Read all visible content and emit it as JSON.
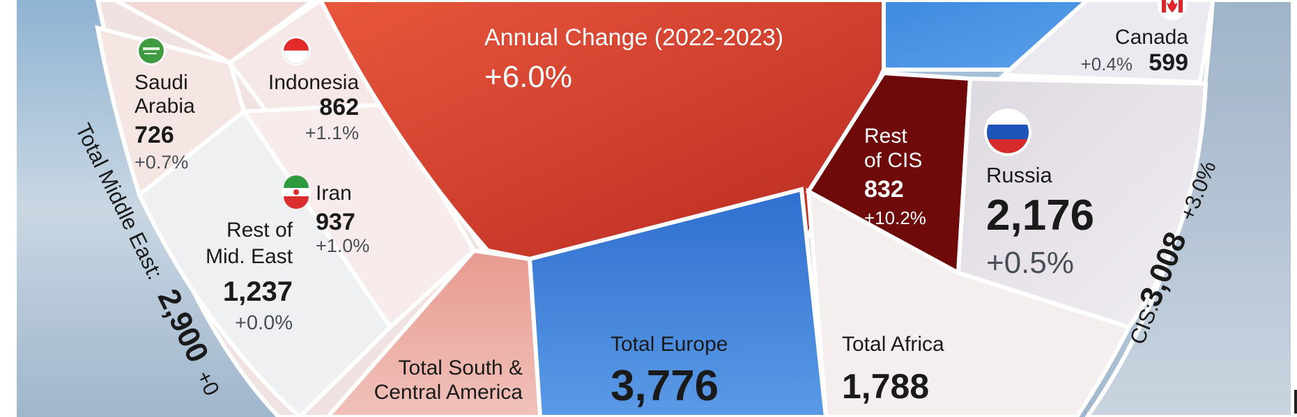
{
  "center": {
    "change_label": "Annual Change (2022-2023)",
    "change_value": "+6.0%"
  },
  "regions": {
    "saudi_arabia": {
      "name_line1": "Saudi",
      "name_line2": "Arabia",
      "value": "726",
      "change": "+0.7%"
    },
    "indonesia": {
      "name": "Indonesia",
      "value": "862",
      "change": "+1.1%"
    },
    "iran": {
      "name": "Iran",
      "value": "937",
      "change": "+1.0%"
    },
    "rest_mid_east": {
      "name_line1": "Rest of",
      "name_line2": "Mid. East",
      "value": "1,237",
      "change": "+0.0%"
    },
    "middle_east_total": {
      "label": "Total Middle East:",
      "value": "2,900",
      "change": "+0"
    },
    "south_central_america": {
      "name_line1": "Total South &",
      "name_line2": "Central America"
    },
    "europe": {
      "name": "Total Europe",
      "value": "3,776"
    },
    "africa": {
      "name": "Total Africa",
      "value": "1,788"
    },
    "rest_cis": {
      "name_line1": "Rest",
      "name_line2": "of CIS",
      "value": "832",
      "change": "+10.2%"
    },
    "russia": {
      "name": "Russia",
      "value": "2,176",
      "change": "+0.5%"
    },
    "canada": {
      "name": "Canada",
      "value": "599",
      "change": "+0.4%"
    },
    "cis_total": {
      "label": "CIS:",
      "value": "3,008",
      "change": "+3.0%"
    }
  },
  "colors": {
    "center_red": "#d9442e",
    "dark_red": "#6e0a0a",
    "europe_blue": "#3c7fd6",
    "light_segment": "#f3e4e2",
    "pale_segment": "#f7eceb",
    "sky": "#b9ccdc"
  },
  "icons": {
    "saudi_flag": "saudi-flag-icon",
    "indonesia_flag": "indonesia-flag-icon",
    "iran_flag": "iran-flag-icon",
    "russia_flag": "russia-flag-icon",
    "canada_flag": "canada-flag-icon"
  }
}
